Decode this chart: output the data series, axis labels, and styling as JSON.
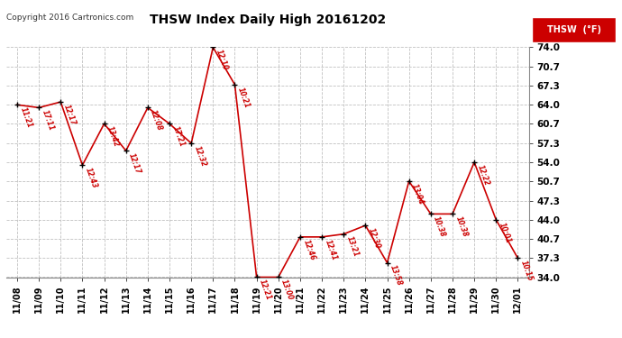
{
  "title": "THSW Index Daily High 20161202",
  "copyright": "Copyright 2016 Cartronics.com",
  "legend_label": "THSW  (°F)",
  "dates": [
    "11/08",
    "11/09",
    "11/10",
    "11/11",
    "11/12",
    "11/13",
    "11/14",
    "11/15",
    "11/16",
    "11/17",
    "11/18",
    "11/19",
    "11/20",
    "11/21",
    "11/22",
    "11/23",
    "11/24",
    "11/25",
    "11/26",
    "11/27",
    "11/28",
    "11/29",
    "11/30",
    "12/01"
  ],
  "values": [
    64.0,
    63.5,
    64.5,
    53.5,
    60.7,
    56.0,
    63.5,
    60.7,
    57.3,
    74.0,
    67.5,
    34.0,
    34.0,
    41.0,
    41.0,
    41.5,
    43.0,
    36.5,
    50.7,
    45.0,
    45.0,
    54.0,
    44.0,
    37.3
  ],
  "time_labels": [
    "11:21",
    "17:11",
    "12:17",
    "12:43",
    "13:42",
    "12:17",
    "12:08",
    "17:21",
    "12:32",
    "12:10",
    "10:21",
    "12:21",
    "13:00",
    "12:46",
    "12:41",
    "13:21",
    "12:30",
    "13:58",
    "13:04",
    "10:38",
    "10:38",
    "12:22",
    "10:01",
    "10:15"
  ],
  "line_color": "#cc0000",
  "marker_color": "#000000",
  "bg_color": "#ffffff",
  "grid_color": "#c0c0c0",
  "title_color": "#000000",
  "ylim": [
    34.0,
    74.0
  ],
  "yticks": [
    34.0,
    37.3,
    40.7,
    44.0,
    47.3,
    50.7,
    54.0,
    57.3,
    60.7,
    64.0,
    67.3,
    70.7,
    74.0
  ],
  "legend_bg": "#cc0000",
  "legend_text_color": "#ffffff"
}
